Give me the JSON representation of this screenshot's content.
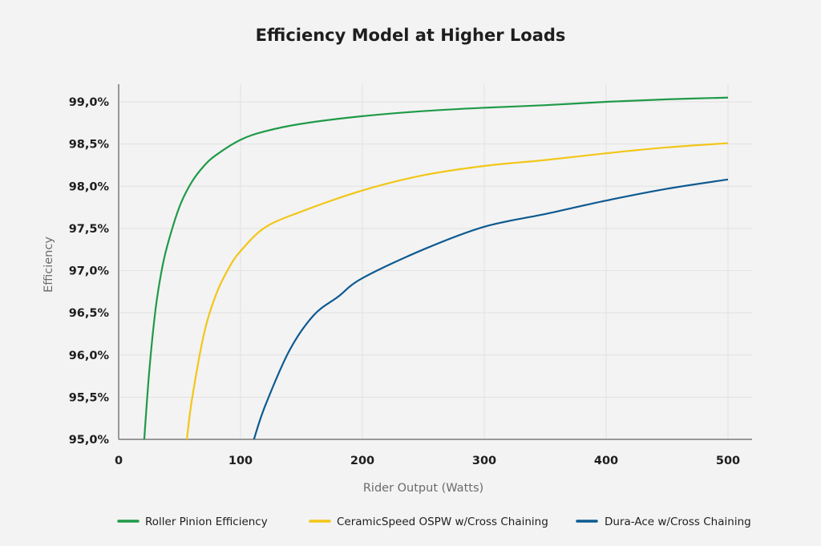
{
  "chart_data": {
    "type": "line",
    "title": "Efficiency Model at Higher Loads",
    "xlabel": "Rider Output (Watts)",
    "ylabel": "Efficiency",
    "xlim": [
      0,
      525
    ],
    "ylim": [
      95.0,
      99.2
    ],
    "x_ticks": [
      "0",
      "100",
      "200",
      "300",
      "400",
      "500"
    ],
    "x_tick_values": [
      0,
      100,
      200,
      300,
      400,
      500
    ],
    "y_ticks": [
      "95,0%",
      "95,5%",
      "96,0%",
      "96,5%",
      "97,0%",
      "97,5%",
      "98,0%",
      "98,5%",
      "99,0%"
    ],
    "y_tick_values": [
      95.0,
      95.5,
      96.0,
      96.5,
      97.0,
      97.5,
      98.0,
      98.5,
      99.0
    ],
    "grid": true,
    "legend_position": "bottom",
    "series": [
      {
        "name": "Roller Pinion Efficiency",
        "color": "#1f9a48",
        "x": [
          21,
          25,
          30,
          35,
          40,
          50,
          60,
          70,
          80,
          100,
          120,
          150,
          200,
          250,
          300,
          350,
          400,
          450,
          500
        ],
        "y": [
          95.0,
          95.79,
          96.51,
          96.98,
          97.3,
          97.76,
          98.05,
          98.24,
          98.37,
          98.55,
          98.65,
          98.74,
          98.83,
          98.89,
          98.93,
          98.96,
          99.0,
          99.03,
          99.05
        ]
      },
      {
        "name": "CeramicSpeed OSPW w/Cross Chaining",
        "color": "#f2c618",
        "x": [
          56,
          60,
          70,
          80,
          90,
          100,
          120,
          150,
          200,
          250,
          300,
          350,
          400,
          450,
          500
        ],
        "y": [
          95.0,
          95.46,
          96.25,
          96.72,
          97.02,
          97.23,
          97.51,
          97.7,
          97.95,
          98.13,
          98.24,
          98.31,
          98.39,
          98.46,
          98.51
        ]
      },
      {
        "name": "Dura-Ace w/Cross Chaining",
        "color": "#0d5a91",
        "x": [
          111,
          120,
          140,
          160,
          180,
          200,
          250,
          300,
          350,
          400,
          450,
          500
        ],
        "y": [
          95.0,
          95.39,
          96.05,
          96.47,
          96.69,
          96.91,
          97.25,
          97.52,
          97.67,
          97.83,
          97.97,
          98.08
        ]
      }
    ]
  }
}
